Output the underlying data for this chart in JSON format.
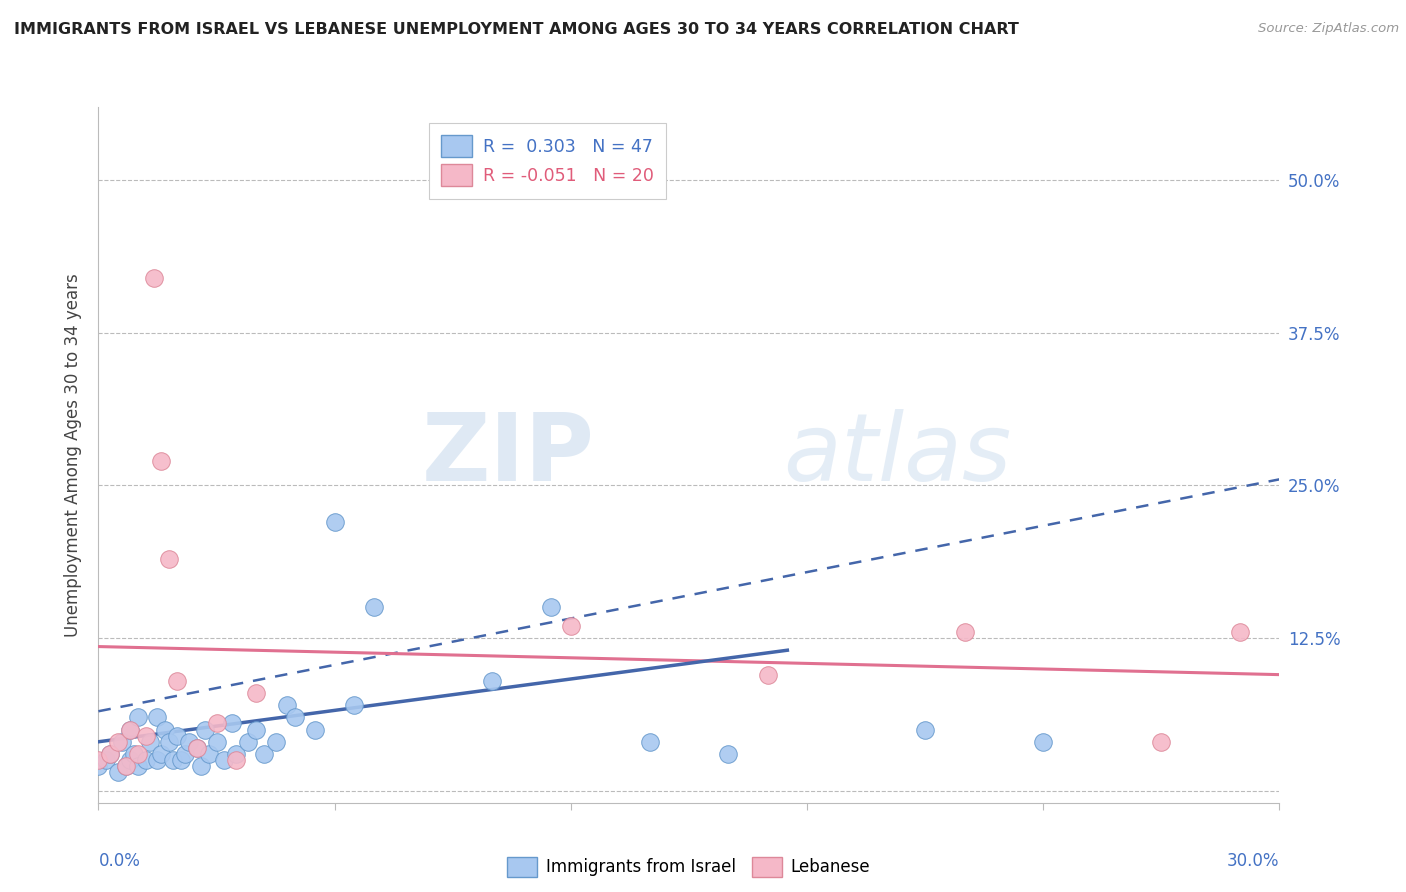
{
  "title": "IMMIGRANTS FROM ISRAEL VS LEBANESE UNEMPLOYMENT AMONG AGES 30 TO 34 YEARS CORRELATION CHART",
  "source": "Source: ZipAtlas.com",
  "ylabel": "Unemployment Among Ages 30 to 34 years",
  "ytick_labels": [
    "",
    "12.5%",
    "25.0%",
    "37.5%",
    "50.0%"
  ],
  "ytick_values": [
    0.0,
    0.125,
    0.25,
    0.375,
    0.5
  ],
  "xlim": [
    0.0,
    0.3
  ],
  "ylim": [
    -0.01,
    0.56
  ],
  "legend_israel": "R =  0.303   N = 47",
  "legend_lebanese": "R = -0.051   N = 20",
  "watermark_zip": "ZIP",
  "watermark_atlas": "atlas",
  "blue_color": "#A8C8F0",
  "blue_edge_color": "#6699CC",
  "blue_line_color": "#4466AA",
  "pink_color": "#F5B8C8",
  "pink_edge_color": "#DD8899",
  "pink_line_color": "#E07090",
  "israel_scatter_x": [
    0.0,
    0.002,
    0.003,
    0.005,
    0.006,
    0.007,
    0.008,
    0.008,
    0.009,
    0.01,
    0.01,
    0.012,
    0.013,
    0.015,
    0.015,
    0.016,
    0.017,
    0.018,
    0.019,
    0.02,
    0.021,
    0.022,
    0.023,
    0.025,
    0.026,
    0.027,
    0.028,
    0.03,
    0.032,
    0.034,
    0.035,
    0.038,
    0.04,
    0.042,
    0.045,
    0.048,
    0.05,
    0.055,
    0.06,
    0.065,
    0.07,
    0.1,
    0.115,
    0.14,
    0.16,
    0.21,
    0.24
  ],
  "israel_scatter_y": [
    0.02,
    0.025,
    0.03,
    0.015,
    0.04,
    0.02,
    0.025,
    0.05,
    0.03,
    0.02,
    0.06,
    0.025,
    0.04,
    0.025,
    0.06,
    0.03,
    0.05,
    0.04,
    0.025,
    0.045,
    0.025,
    0.03,
    0.04,
    0.035,
    0.02,
    0.05,
    0.03,
    0.04,
    0.025,
    0.055,
    0.03,
    0.04,
    0.05,
    0.03,
    0.04,
    0.07,
    0.06,
    0.05,
    0.22,
    0.07,
    0.15,
    0.09,
    0.15,
    0.04,
    0.03,
    0.05,
    0.04
  ],
  "lebanese_scatter_x": [
    0.0,
    0.003,
    0.005,
    0.007,
    0.008,
    0.01,
    0.012,
    0.014,
    0.016,
    0.018,
    0.02,
    0.025,
    0.03,
    0.035,
    0.04,
    0.12,
    0.17,
    0.22,
    0.27,
    0.29
  ],
  "lebanese_scatter_y": [
    0.025,
    0.03,
    0.04,
    0.02,
    0.05,
    0.03,
    0.045,
    0.42,
    0.27,
    0.19,
    0.09,
    0.035,
    0.055,
    0.025,
    0.08,
    0.135,
    0.095,
    0.13,
    0.04,
    0.13
  ],
  "israel_solid_line_x": [
    0.0,
    0.175
  ],
  "israel_solid_line_y": [
    0.04,
    0.115
  ],
  "israel_dashed_line_x": [
    0.0,
    0.3
  ],
  "israel_dashed_line_y": [
    0.065,
    0.255
  ],
  "lebanese_line_x": [
    0.0,
    0.3
  ],
  "lebanese_line_y": [
    0.118,
    0.095
  ]
}
